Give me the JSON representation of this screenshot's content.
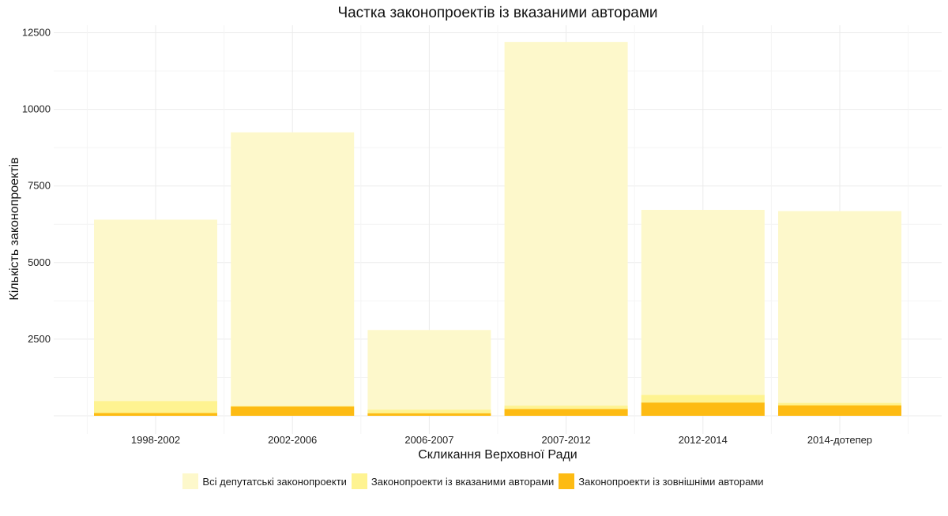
{
  "chart_data": {
    "type": "bar",
    "stacked": true,
    "title": "Частка законопроектів із вказаними авторами",
    "xlabel": "Скликання Верховної Ради",
    "ylabel": "Кількість законопроектів",
    "categories": [
      "1998-2002",
      "2002-2006",
      "2006-2007",
      "2007-2012",
      "2012-2014",
      "2014-дотепер"
    ],
    "ylim": [
      0,
      12700
    ],
    "yticks": [
      2500,
      5000,
      7500,
      10000,
      12500
    ],
    "grid": true,
    "legend_position": "bottom",
    "series": [
      {
        "name": "Всі депутатські законопроекти",
        "color": "#fdf8cb",
        "values": [
          6400,
          9250,
          2800,
          12200,
          6720,
          6680
        ]
      },
      {
        "name": "Законопроекти із вказаними авторами",
        "color": "#fef391",
        "values": [
          480,
          320,
          200,
          330,
          680,
          420
        ]
      },
      {
        "name": "Законопроекти із зовнішніми авторами",
        "color": "#fdbb13",
        "values": [
          90,
          300,
          80,
          220,
          430,
          340
        ]
      }
    ]
  }
}
